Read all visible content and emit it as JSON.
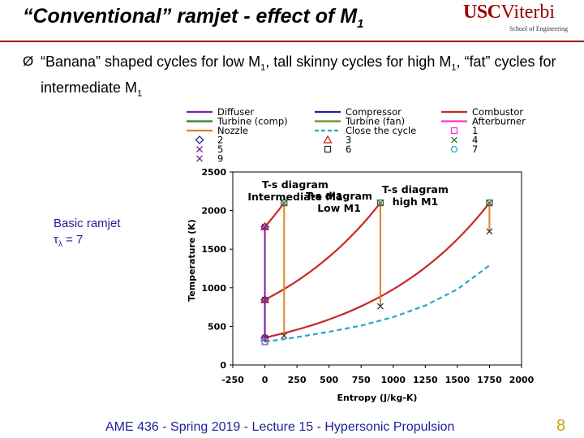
{
  "slide": {
    "title": "“Conventional” ramjet - effect of M",
    "title_sub": "1",
    "logo_usc": "USC",
    "logo_viterbi": "Viterbi",
    "logo_school": "School of Engineering",
    "bullet_symbol": "Ø",
    "bullet_part1": "“Banana” shaped cycles for low M",
    "bullet_sub1": "1",
    "bullet_part2": ", tall skinny cycles for  high M",
    "bullet_sub2": "1",
    "bullet_part3": ", “fat” cycles for intermediate M",
    "bullet_sub3": "1",
    "side_line1": "Basic ramjet",
    "side_tau": "τ",
    "side_tau_sub": "λ",
    "side_tau_value": " = 7",
    "footer": "AME 436 - Spring 2019 - Lecture 15 - Hypersonic Propulsion",
    "page_number": "8"
  },
  "colors": {
    "title_rule": "#990000",
    "footer_text": "#1f1f99",
    "page_number": "#c8a400",
    "diffuser": "#7b1fa2",
    "compressor": "#1a2a8a",
    "combustor": "#c62828",
    "turbine_comp": "#2e7d32",
    "turbine_fan": "#6b8e23",
    "afterburner": "#ff33cc",
    "nozzle": "#e67e22",
    "close_cycle": "#26a6c4"
  },
  "chart_data": {
    "type": "line",
    "xlabel": "Entropy (J/kg-K)",
    "ylabel": "Temperature (K)",
    "xlim": [
      -250,
      2000
    ],
    "ylim": [
      0,
      2500
    ],
    "xticks": [
      -250,
      0,
      250,
      500,
      750,
      1000,
      1250,
      1500,
      1750,
      2000
    ],
    "yticks": [
      0,
      500,
      1000,
      1500,
      2000,
      2500
    ],
    "grid": false,
    "legend_position": "top",
    "legend": [
      {
        "name": "Diffuser",
        "kind": "line",
        "color": "#7b1fa2"
      },
      {
        "name": "Compressor",
        "kind": "line",
        "color": "#1a2a8a"
      },
      {
        "name": "Combustor",
        "kind": "line",
        "color": "#c62828"
      },
      {
        "name": "Turbine (comp)",
        "kind": "line",
        "color": "#2e7d32"
      },
      {
        "name": "Turbine (fan)",
        "kind": "line",
        "color": "#6b8e23"
      },
      {
        "name": "Afterburner",
        "kind": "line",
        "color": "#ff33cc"
      },
      {
        "name": "Nozzle",
        "kind": "line",
        "color": "#e67e22"
      },
      {
        "name": "Close the cycle",
        "kind": "dash",
        "color": "#26a6c4"
      },
      {
        "name": "1",
        "kind": "square",
        "color": "#ff33cc"
      },
      {
        "name": "2",
        "kind": "diamond",
        "color": "#1a2a8a"
      },
      {
        "name": "3",
        "kind": "triangle",
        "color": "#c62828"
      },
      {
        "name": "4",
        "kind": "x",
        "color": "#2e7d32"
      },
      {
        "name": "5",
        "kind": "x",
        "color": "#7b1fa2"
      },
      {
        "name": "6",
        "kind": "square",
        "color": "#333333"
      },
      {
        "name": "7",
        "kind": "circle",
        "color": "#26a6c4"
      },
      {
        "name": "9",
        "kind": "x",
        "color": "#7b1fa2"
      }
    ],
    "annotations": [
      "T-s diagram Intermediate M1",
      "T-s diagram Low M1",
      "T-s diagram high M1"
    ],
    "close_cycle": {
      "x": [
        0,
        250,
        500,
        750,
        1000,
        1250,
        1500,
        1750
      ],
      "y": [
        300,
        360,
        430,
        510,
        620,
        770,
        980,
        1290
      ]
    },
    "cycles": [
      {
        "name": "Low M1",
        "diffuser_T": [
          300,
          355
        ],
        "combustor_s": [
          0,
          1750
        ],
        "combustor_T": [
          355,
          2100
        ],
        "nozzle_T": [
          2100,
          1730
        ]
      },
      {
        "name": "Intermediate M1",
        "diffuser_T": [
          300,
          845
        ],
        "combustor_s": [
          0,
          900
        ],
        "combustor_T": [
          845,
          2100
        ],
        "nozzle_T": [
          2100,
          760
        ]
      },
      {
        "name": "High M1",
        "diffuser_T": [
          300,
          1790
        ],
        "combustor_s": [
          0,
          150
        ],
        "combustor_T": [
          1790,
          2100
        ],
        "nozzle_T": [
          2100,
          380
        ]
      }
    ]
  }
}
